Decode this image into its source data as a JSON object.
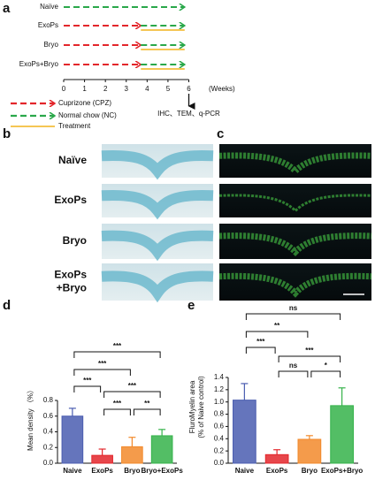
{
  "panel_labels": [
    "a",
    "b",
    "c",
    "d",
    "e"
  ],
  "timeline": {
    "xlim": [
      0,
      6
    ],
    "xticks": [
      0,
      1,
      2,
      3,
      4,
      5,
      6
    ],
    "unit": "(Weeks)",
    "endpoint": "IHC、TEM、q-PCR",
    "groups": [
      {
        "label": "Naïve",
        "nc": [
          0,
          5.8
        ]
      },
      {
        "label": "ExoPs",
        "cpz": [
          0,
          3.7
        ],
        "nc": [
          3.7,
          5.8
        ],
        "treatment": [
          3.7,
          5.8
        ]
      },
      {
        "label": "Bryo",
        "cpz": [
          0,
          3.7
        ],
        "nc": [
          3.7,
          5.8
        ],
        "treatment": [
          3.7,
          5.8
        ]
      },
      {
        "label": "ExoPs+Bryo",
        "cpz": [
          0,
          3.7
        ],
        "nc": [
          3.7,
          5.8
        ],
        "treatment": [
          3.7,
          5.8
        ]
      }
    ],
    "legend": {
      "cpz": "Cuprizone (CPZ)",
      "nc": "Normal chow (NC)",
      "treatment": "Treatment"
    },
    "colors": {
      "cpz": "#e3262b",
      "nc": "#2aa84a",
      "treatment": "#f2b31b"
    }
  },
  "micrographs": {
    "rows": [
      [
        "Naïve"
      ],
      [
        "ExoPs"
      ],
      [
        "Bryo"
      ],
      [
        "ExoPs",
        "+Bryo"
      ]
    ]
  },
  "chart_data": [
    {
      "type": "bar",
      "ylabel": "Mean density （%）",
      "categories": [
        "Naive",
        "ExoPs",
        "Bryo",
        "Bryo+ExoPs"
      ],
      "values": [
        0.6,
        0.1,
        0.21,
        0.35
      ],
      "errors": [
        0.1,
        0.08,
        0.12,
        0.08
      ],
      "colors": [
        "#4a5db0",
        "#e3262b",
        "#f28a2b",
        "#35b34a"
      ],
      "ylim": [
        0,
        0.8
      ],
      "yticks": [
        {
          "value": 0,
          "label": "0.0"
        },
        0.2,
        0.4,
        0.6,
        0.8
      ],
      "comparisons": [
        {
          "from": "Naive",
          "to": "Bryo+ExoPs",
          "label": "***"
        },
        {
          "from": "Naive",
          "to": "Bryo",
          "label": "***"
        },
        {
          "from": "Naive",
          "to": "ExoPs",
          "label": "***"
        },
        {
          "from": "ExoPs",
          "to": "Bryo+ExoPs",
          "label": "***"
        },
        {
          "from": "ExoPs",
          "to": "Bryo",
          "label": "***"
        },
        {
          "from": "Bryo",
          "to": "Bryo+ExoPs",
          "label": "**"
        }
      ]
    },
    {
      "type": "bar",
      "ylabel": [
        "FluroMyelin area",
        "(% of Naive control)"
      ],
      "categories": [
        "Naive",
        "ExoPs",
        "Bryo",
        "ExoPs+Bryo"
      ],
      "values": [
        1.03,
        0.14,
        0.39,
        0.94
      ],
      "errors": [
        0.27,
        0.08,
        0.06,
        0.29
      ],
      "colors": [
        "#4a5db0",
        "#e3262b",
        "#f28a2b",
        "#35b34a"
      ],
      "ylim": [
        0,
        1.4
      ],
      "yticks": [
        {
          "value": 0,
          "label": "0.0"
        },
        0.2,
        0.4,
        0.6,
        0.8,
        {
          "value": 1,
          "label": "1.0"
        },
        1.2,
        1.4
      ],
      "comparisons": [
        {
          "from": "Naive",
          "to": "ExoPs+Bryo",
          "label": "ns"
        },
        {
          "from": "Naive",
          "to": "Bryo",
          "label": "**"
        },
        {
          "from": "Naive",
          "to": "ExoPs",
          "label": "***"
        },
        {
          "from": "ExoPs",
          "to": "ExoPs+Bryo",
          "label": "***"
        },
        {
          "from": "ExoPs",
          "to": "Bryo",
          "label": "ns"
        },
        {
          "from": "Bryo",
          "to": "ExoPs+Bryo",
          "label": "*"
        }
      ]
    }
  ]
}
